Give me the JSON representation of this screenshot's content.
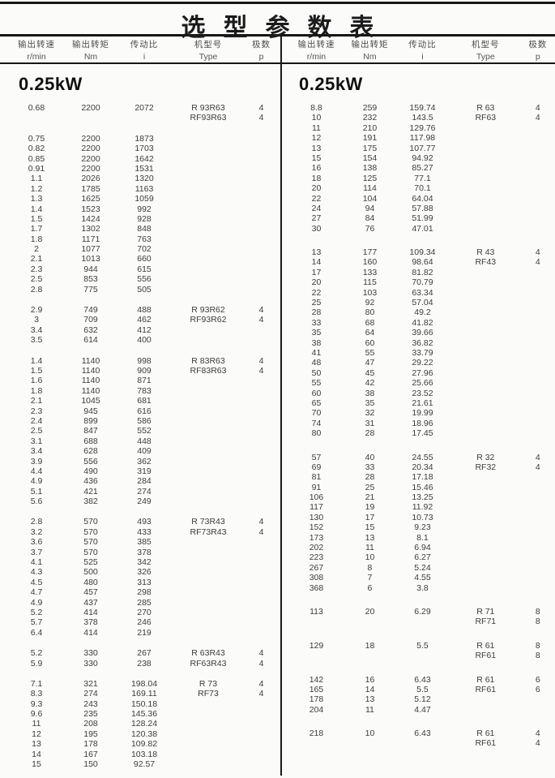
{
  "title": "选型参数表",
  "columns": [
    {
      "label": "输出转速",
      "unit": "r/min"
    },
    {
      "label": "输出转矩",
      "unit": "Nm"
    },
    {
      "label": "传动比",
      "unit": "i"
    },
    {
      "label": "机型号",
      "unit": "Type"
    },
    {
      "label": "极数",
      "unit": "p"
    }
  ],
  "panels": [
    {
      "power": "0.25kW",
      "blocks": [
        {
          "rows": [
            [
              "0.68",
              "2200",
              "2072",
              "R 93R63",
              "4"
            ],
            [
              "",
              "",
              "",
              "RF93R63",
              "4"
            ]
          ]
        },
        {
          "rows": [
            [
              "0.75",
              "2200",
              "1873"
            ],
            [
              "0.82",
              "2200",
              "1703"
            ],
            [
              "0.85",
              "2200",
              "1642"
            ],
            [
              "0.91",
              "2200",
              "1531"
            ],
            [
              "1.1",
              "2026",
              "1320"
            ],
            [
              "1.2",
              "1785",
              "1163"
            ],
            [
              "1.3",
              "1625",
              "1059"
            ],
            [
              "1.4",
              "1523",
              "992"
            ],
            [
              "1.5",
              "1424",
              "928"
            ],
            [
              "1.7",
              "1302",
              "848"
            ],
            [
              "1.8",
              "1171",
              "763"
            ],
            [
              "2",
              "1077",
              "702"
            ],
            [
              "2.1",
              "1013",
              "660"
            ],
            [
              "2.3",
              "944",
              "615"
            ],
            [
              "2.5",
              "853",
              "556"
            ],
            [
              "2.8",
              "775",
              "505"
            ]
          ]
        },
        {
          "rows": [
            [
              "2.9",
              "749",
              "488",
              "R 93R62",
              "4"
            ],
            [
              "3",
              "709",
              "462",
              "RF93R62",
              "4"
            ],
            [
              "3.4",
              "632",
              "412"
            ],
            [
              "3.5",
              "614",
              "400"
            ]
          ]
        },
        {
          "rows": [
            [
              "1.4",
              "1140",
              "998",
              "R 83R63",
              "4"
            ],
            [
              "1.5",
              "1140",
              "909",
              "RF83R63",
              "4"
            ],
            [
              "1.6",
              "1140",
              "871"
            ],
            [
              "1.8",
              "1140",
              "783"
            ],
            [
              "2.1",
              "1045",
              "681"
            ],
            [
              "2.3",
              "945",
              "616"
            ],
            [
              "2.4",
              "899",
              "586"
            ],
            [
              "2.5",
              "847",
              "552"
            ],
            [
              "3.1",
              "688",
              "448"
            ],
            [
              "3.4",
              "628",
              "409"
            ],
            [
              "3.9",
              "556",
              "362"
            ],
            [
              "4.4",
              "490",
              "319"
            ],
            [
              "4.9",
              "436",
              "284"
            ],
            [
              "5.1",
              "421",
              "274"
            ],
            [
              "5.6",
              "382",
              "249"
            ]
          ]
        },
        {
          "rows": [
            [
              "2.8",
              "570",
              "493",
              "R 73R43",
              "4"
            ],
            [
              "3.2",
              "570",
              "433",
              "RF73R43",
              "4"
            ],
            [
              "3.6",
              "570",
              "385"
            ],
            [
              "3.7",
              "570",
              "378"
            ],
            [
              "4.1",
              "525",
              "342"
            ],
            [
              "4.3",
              "500",
              "326"
            ],
            [
              "4.5",
              "480",
              "313"
            ],
            [
              "4.7",
              "457",
              "298"
            ],
            [
              "4.9",
              "437",
              "285"
            ],
            [
              "5.2",
              "414",
              "270"
            ],
            [
              "5.7",
              "378",
              "246"
            ],
            [
              "6.4",
              "414",
              "219"
            ]
          ]
        },
        {
          "rows": [
            [
              "5.2",
              "330",
              "267",
              "R 63R43",
              "4"
            ],
            [
              "5.9",
              "330",
              "238",
              "RF63R43",
              "4"
            ]
          ]
        },
        {
          "rows": [
            [
              "7.1",
              "321",
              "198.04",
              "R 73",
              "4"
            ],
            [
              "8.3",
              "274",
              "169.11",
              "RF73",
              "4"
            ],
            [
              "9.3",
              "243",
              "150.18"
            ],
            [
              "9.6",
              "235",
              "145.36"
            ],
            [
              "11",
              "208",
              "128.24"
            ],
            [
              "12",
              "195",
              "120.38"
            ],
            [
              "13",
              "178",
              "109.82"
            ],
            [
              "14",
              "167",
              "103.18"
            ],
            [
              "15",
              "150",
              "92.57"
            ]
          ]
        }
      ]
    },
    {
      "power": "0.25kW",
      "blocks": [
        {
          "rows": [
            [
              "8.8",
              "259",
              "159.74",
              "R 63",
              "4"
            ],
            [
              "10",
              "232",
              "143.5",
              "RF63",
              "4"
            ],
            [
              "11",
              "210",
              "129.76"
            ],
            [
              "12",
              "191",
              "117.98"
            ],
            [
              "13",
              "175",
              "107.77"
            ],
            [
              "15",
              "154",
              "94.92"
            ],
            [
              "16",
              "138",
              "85.27"
            ],
            [
              "18",
              "125",
              "77.1"
            ],
            [
              "20",
              "114",
              "70.1"
            ],
            [
              "22",
              "104",
              "64.04"
            ],
            [
              "24",
              "94",
              "57.88"
            ],
            [
              "27",
              "84",
              "51.99"
            ],
            [
              "30",
              "76",
              "47.01"
            ]
          ]
        },
        {
          "rows": [
            [
              "13",
              "177",
              "109.34",
              "R 43",
              "4"
            ],
            [
              "14",
              "160",
              "98.64",
              "RF43",
              "4"
            ],
            [
              "17",
              "133",
              "81.82"
            ],
            [
              "20",
              "115",
              "70.79"
            ],
            [
              "22",
              "103",
              "63.34"
            ],
            [
              "25",
              "92",
              "57.04"
            ],
            [
              "28",
              "80",
              "49.2"
            ],
            [
              "33",
              "68",
              "41.82"
            ],
            [
              "35",
              "64",
              "39.66"
            ],
            [
              "38",
              "60",
              "36.82"
            ],
            [
              "41",
              "55",
              "33.79"
            ],
            [
              "48",
              "47",
              "29.22"
            ],
            [
              "50",
              "45",
              "27.96"
            ],
            [
              "55",
              "42",
              "25.66"
            ],
            [
              "60",
              "38",
              "23.52"
            ],
            [
              "65",
              "35",
              "21.61"
            ],
            [
              "70",
              "32",
              "19.99"
            ],
            [
              "74",
              "31",
              "18.96"
            ],
            [
              "80",
              "28",
              "17.45"
            ]
          ]
        },
        {
          "rows": [
            [
              "57",
              "40",
              "24.55",
              "R 32",
              "4"
            ],
            [
              "69",
              "33",
              "20.34",
              "RF32",
              "4"
            ],
            [
              "81",
              "28",
              "17.18"
            ],
            [
              "91",
              "25",
              "15.46"
            ],
            [
              "106",
              "21",
              "13.25"
            ],
            [
              "117",
              "19",
              "11.92"
            ],
            [
              "130",
              "17",
              "10.73"
            ],
            [
              "152",
              "15",
              "9.23"
            ],
            [
              "173",
              "13",
              "8.1"
            ],
            [
              "202",
              "11",
              "6.94"
            ],
            [
              "223",
              "10",
              "6.27"
            ],
            [
              "267",
              "8",
              "5.24"
            ],
            [
              "308",
              "7",
              "4.55"
            ],
            [
              "368",
              "6",
              "3.8"
            ]
          ]
        },
        {
          "rows": [
            [
              "113",
              "20",
              "6.29",
              "R 71",
              "8"
            ],
            [
              "",
              "",
              "",
              "RF71",
              "8"
            ]
          ]
        },
        {
          "rows": [
            [
              "129",
              "18",
              "5.5",
              "R 61",
              "8"
            ],
            [
              "",
              "",
              "",
              "RF61",
              "8"
            ]
          ]
        },
        {
          "rows": [
            [
              "142",
              "16",
              "6.43",
              "R 61",
              "6"
            ],
            [
              "165",
              "14",
              "5.5",
              "RF61",
              "6"
            ],
            [
              "178",
              "13",
              "5.12"
            ],
            [
              "204",
              "11",
              "4.47"
            ]
          ]
        },
        {
          "rows": [
            [
              "218",
              "10",
              "6.43",
              "R 61",
              "4"
            ],
            [
              "",
              "",
              "",
              "RF61",
              "4"
            ]
          ]
        }
      ]
    }
  ]
}
